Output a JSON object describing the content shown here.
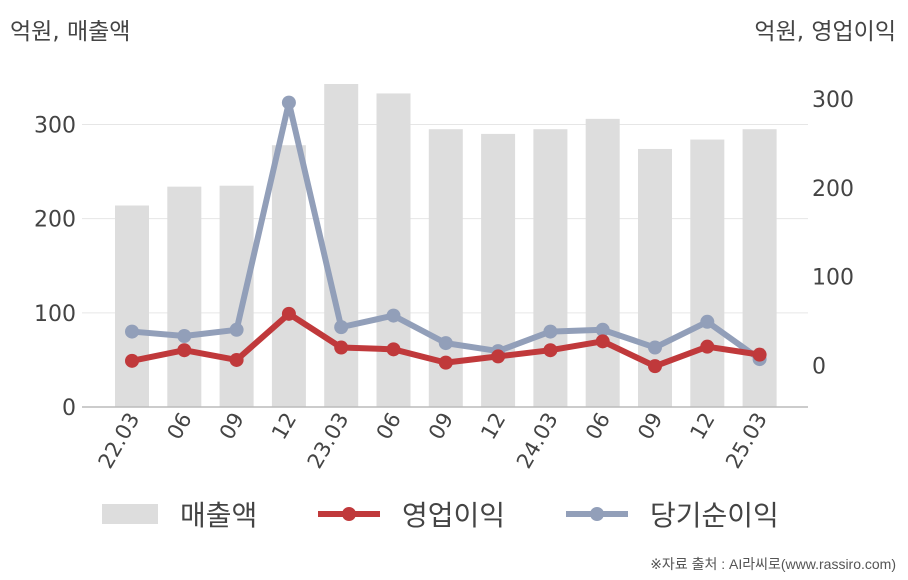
{
  "units": {
    "left": "억원, 매출액",
    "right": "억원, 영업이익"
  },
  "chart_data": {
    "type": "bar",
    "categories": [
      "22.03",
      "06",
      "09",
      "12",
      "23.03",
      "06",
      "09",
      "12",
      "24.03",
      "06",
      "09",
      "12",
      "25.03"
    ],
    "y_left": {
      "ylim": [
        0,
        360
      ],
      "ticks": [
        0,
        100,
        200,
        300
      ]
    },
    "y_right": {
      "ylim": [
        -47,
        335
      ],
      "ticks": [
        0,
        100,
        200,
        300
      ]
    },
    "series": [
      {
        "name": "매출액",
        "type": "bar",
        "axis": "left",
        "color": "#dddddd",
        "values": [
          214,
          234,
          235,
          278,
          343,
          333,
          295,
          290,
          295,
          306,
          274,
          284,
          295
        ]
      },
      {
        "name": "영업이익",
        "type": "line",
        "axis": "right",
        "color": "#c0393b",
        "values": [
          5,
          17,
          6,
          58,
          20,
          18,
          3,
          10,
          17,
          27,
          -1,
          21,
          12
        ]
      },
      {
        "name": "당기순이익",
        "type": "line",
        "axis": "right",
        "color": "#929fb9",
        "values": [
          38,
          33,
          40,
          296,
          43,
          56,
          25,
          16,
          38,
          40,
          20,
          49,
          7
        ]
      }
    ],
    "grid": true,
    "legend": "bottom"
  },
  "source": "※자료 출처 : AI라씨로(www.rassiro.com)"
}
